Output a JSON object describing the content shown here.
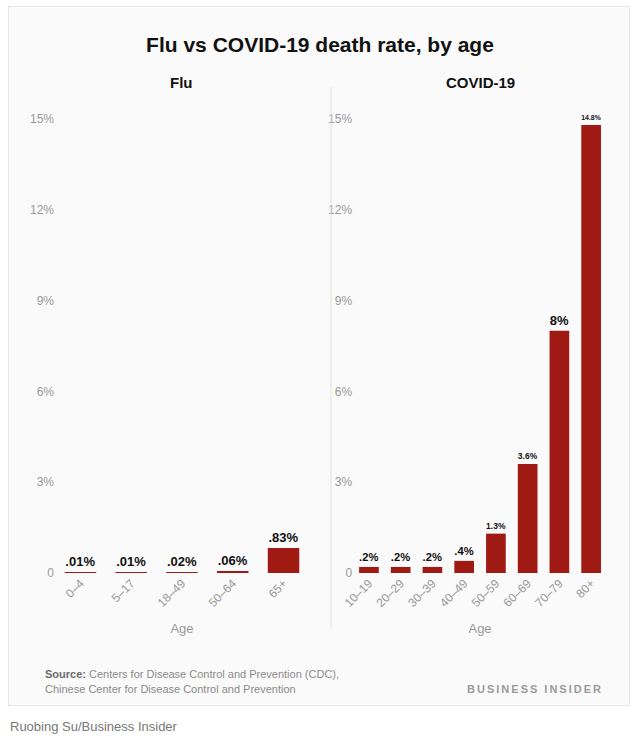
{
  "title": "Flu vs COVID-19 death rate, by age",
  "chart_data": [
    {
      "type": "bar",
      "title": "Flu",
      "x_label": "Age",
      "categories": [
        "0–4",
        "5–17",
        "18–49",
        "50–64",
        "65+"
      ],
      "values": [
        0.01,
        0.01,
        0.02,
        0.06,
        0.83
      ],
      "value_labels": [
        ".01%",
        ".01%",
        ".02%",
        ".06%",
        ".83%"
      ],
      "color": "#9e1a12",
      "ylim": [
        0,
        15
      ],
      "yticks": [
        0,
        {
          "value": 3,
          "label": "3%"
        },
        {
          "value": 6,
          "label": "6%"
        },
        {
          "value": 9,
          "label": "9%"
        },
        {
          "value": 12,
          "label": "12%"
        },
        {
          "value": 15,
          "label": "15%"
        }
      ],
      "grid": false,
      "data_labels": true
    },
    {
      "type": "bar",
      "title": "COVID-19",
      "x_label": "Age",
      "categories": [
        "10–19",
        "20–29",
        "30–39",
        "40–49",
        "50–59",
        "60–69",
        "70–79",
        "80+"
      ],
      "values": [
        0.2,
        0.2,
        0.2,
        0.4,
        1.3,
        3.6,
        8,
        14.8
      ],
      "value_labels": [
        ".2%",
        ".2%",
        ".2%",
        ".4%",
        "1.3%",
        "3.6%",
        "8%",
        "14.8%"
      ],
      "color": "#9e1a12",
      "ylim": [
        0,
        15
      ],
      "yticks": [
        0,
        {
          "value": 3,
          "label": "3%"
        },
        {
          "value": 6,
          "label": "6%"
        },
        {
          "value": 9,
          "label": "9%"
        },
        {
          "value": 12,
          "label": "12%"
        },
        {
          "value": 15,
          "label": "15%"
        }
      ],
      "grid": false,
      "data_labels": true
    }
  ],
  "source_label": "Source:",
  "source": [
    "Centers for Disease Control and Prevention (CDC),",
    "Chinese Center for Disease Control and Prevention"
  ],
  "brand": "BUSINESS INSIDER",
  "credit": "Ruobing Su/Business Insider"
}
